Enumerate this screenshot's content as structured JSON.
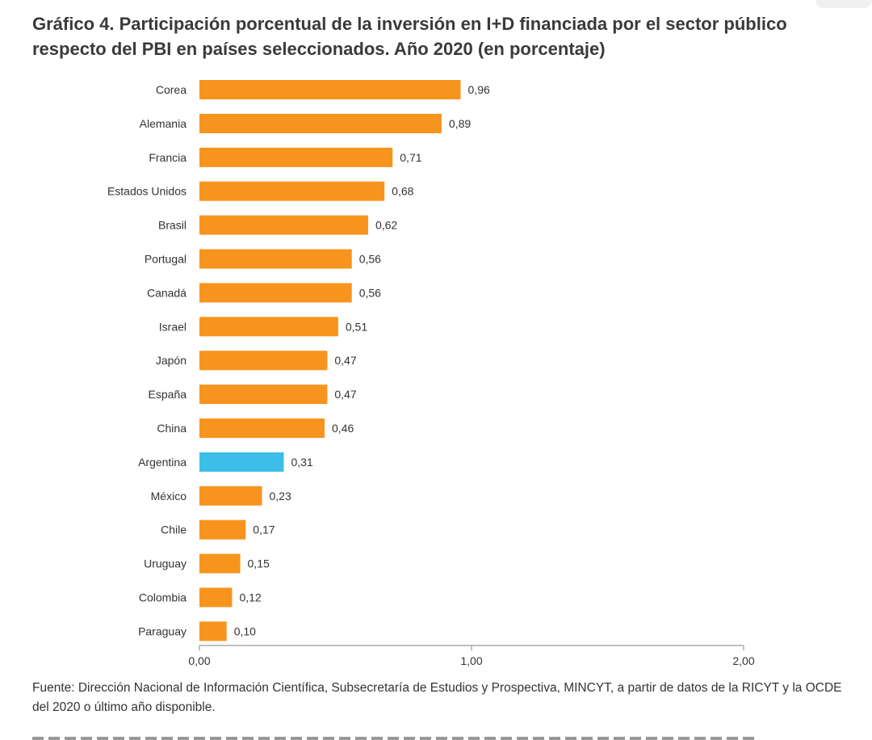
{
  "title": "Gráfico 4. Participación porcentual de la inversión en I+D financiada por el sector público respecto del PBI en países seleccionados. Año 2020 (en porcentaje)",
  "source": "Fuente: Dirección Nacional de Información Científica, Subsecretaría de Estudios y Prospectiva, MINCYT, a partir de datos de la RICYT y la OCDE del 2020 o último año disponible.",
  "chart_data": {
    "type": "bar",
    "orientation": "horizontal",
    "title": "Gráfico 4. Participación porcentual de la inversión en I+D financiada por el sector público respecto del PBI en países seleccionados. Año 2020 (en porcentaje)",
    "categories": [
      "Corea",
      "Alemania",
      "Francia",
      "Estados Unidos",
      "Brasil",
      "Portugal",
      "Canadá",
      "Israel",
      "Japón",
      "España",
      "China",
      "Argentina",
      "México",
      "Chile",
      "Uruguay",
      "Colombia",
      "Paraguay"
    ],
    "values": [
      0.96,
      0.89,
      0.71,
      0.68,
      0.62,
      0.56,
      0.56,
      0.51,
      0.47,
      0.47,
      0.46,
      0.31,
      0.23,
      0.17,
      0.15,
      0.12,
      0.1
    ],
    "value_labels": [
      "0,96",
      "0,89",
      "0,71",
      "0,68",
      "0,62",
      "0,56",
      "0,56",
      "0,51",
      "0,47",
      "0,47",
      "0,46",
      "0,31",
      "0,23",
      "0,17",
      "0,15",
      "0,12",
      "0,10"
    ],
    "highlight": "Argentina",
    "xlim": [
      0,
      2
    ],
    "xticks": [
      0,
      1,
      2
    ],
    "xtick_labels": [
      "0,00",
      "1,00",
      "2,00"
    ],
    "xlabel": "",
    "ylabel": "",
    "grid": false,
    "legend": "none",
    "colors": {
      "bar": "#f7941d",
      "highlight": "#3bbfe8",
      "axis": "#999999"
    }
  }
}
